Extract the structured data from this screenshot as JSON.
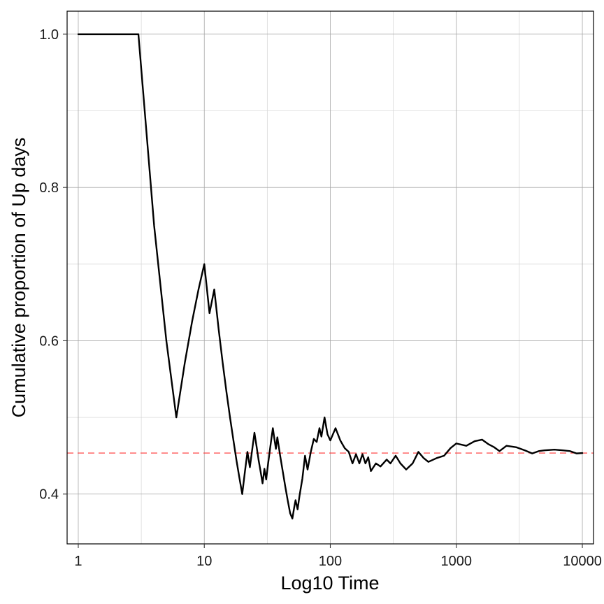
{
  "chart_data": {
    "type": "line",
    "title": "",
    "xlabel": "Log10 Time",
    "ylabel": "Cumulative proportion of Up days",
    "x_scale": "log10",
    "xlim": [
      0.8155,
      12263
    ],
    "ylim": [
      0.335,
      1.03
    ],
    "x_ticks": [
      1,
      10,
      100,
      1000,
      10000
    ],
    "x_tick_labels": [
      "1",
      "10",
      "100",
      "1000",
      "10000"
    ],
    "y_ticks": [
      0.4,
      0.6,
      0.8,
      1.0
    ],
    "y_tick_labels": [
      "0.4",
      "0.6",
      "0.8",
      "1.0"
    ],
    "grid": true,
    "reference_line": {
      "y": 0.4535,
      "color": "#ff3333",
      "style": "dashed"
    },
    "series": [
      {
        "color": "#000000",
        "points": [
          [
            1,
            1.0
          ],
          [
            2,
            1.0
          ],
          [
            3,
            1.0
          ],
          [
            4,
            0.75
          ],
          [
            5,
            0.6
          ],
          [
            6,
            0.5
          ],
          [
            7,
            0.571
          ],
          [
            8,
            0.625
          ],
          [
            9,
            0.667
          ],
          [
            10,
            0.7
          ],
          [
            11,
            0.636
          ],
          [
            12,
            0.667
          ],
          [
            13,
            0.615
          ],
          [
            14,
            0.571
          ],
          [
            15,
            0.533
          ],
          [
            16,
            0.5
          ],
          [
            17,
            0.471
          ],
          [
            18,
            0.444
          ],
          [
            19,
            0.421
          ],
          [
            20,
            0.4
          ],
          [
            21,
            0.429
          ],
          [
            22,
            0.455
          ],
          [
            23,
            0.435
          ],
          [
            24,
            0.458
          ],
          [
            25,
            0.48
          ],
          [
            26,
            0.462
          ],
          [
            27,
            0.444
          ],
          [
            28,
            0.429
          ],
          [
            29,
            0.414
          ],
          [
            30,
            0.433
          ],
          [
            31,
            0.419
          ],
          [
            32,
            0.438
          ],
          [
            33,
            0.455
          ],
          [
            34,
            0.471
          ],
          [
            35,
            0.486
          ],
          [
            36,
            0.472
          ],
          [
            37,
            0.459
          ],
          [
            38,
            0.474
          ],
          [
            39,
            0.462
          ],
          [
            40,
            0.45
          ],
          [
            42,
            0.429
          ],
          [
            44,
            0.409
          ],
          [
            46,
            0.391
          ],
          [
            48,
            0.375
          ],
          [
            50,
            0.368
          ],
          [
            52,
            0.385
          ],
          [
            53,
            0.392
          ],
          [
            55,
            0.38
          ],
          [
            57,
            0.398
          ],
          [
            60,
            0.42
          ],
          [
            63,
            0.45
          ],
          [
            66,
            0.432
          ],
          [
            70,
            0.455
          ],
          [
            74,
            0.472
          ],
          [
            78,
            0.468
          ],
          [
            82,
            0.486
          ],
          [
            85,
            0.475
          ],
          [
            90,
            0.5
          ],
          [
            95,
            0.478
          ],
          [
            100,
            0.47
          ],
          [
            110,
            0.486
          ],
          [
            120,
            0.47
          ],
          [
            130,
            0.46
          ],
          [
            140,
            0.455
          ],
          [
            150,
            0.44
          ],
          [
            160,
            0.452
          ],
          [
            170,
            0.44
          ],
          [
            180,
            0.452
          ],
          [
            190,
            0.44
          ],
          [
            200,
            0.448
          ],
          [
            210,
            0.43
          ],
          [
            230,
            0.44
          ],
          [
            250,
            0.436
          ],
          [
            280,
            0.445
          ],
          [
            300,
            0.44
          ],
          [
            330,
            0.45
          ],
          [
            360,
            0.44
          ],
          [
            400,
            0.432
          ],
          [
            450,
            0.44
          ],
          [
            500,
            0.455
          ],
          [
            550,
            0.447
          ],
          [
            600,
            0.442
          ],
          [
            700,
            0.447
          ],
          [
            800,
            0.45
          ],
          [
            900,
            0.46
          ],
          [
            1000,
            0.466
          ],
          [
            1200,
            0.463
          ],
          [
            1400,
            0.469
          ],
          [
            1600,
            0.471
          ],
          [
            1800,
            0.465
          ],
          [
            2000,
            0.461
          ],
          [
            2200,
            0.456
          ],
          [
            2500,
            0.463
          ],
          [
            3000,
            0.461
          ],
          [
            3500,
            0.457
          ],
          [
            4000,
            0.453
          ],
          [
            4500,
            0.456
          ],
          [
            5000,
            0.457
          ],
          [
            6000,
            0.458
          ],
          [
            7000,
            0.457
          ],
          [
            8000,
            0.456
          ],
          [
            9000,
            0.453
          ],
          [
            10000,
            0.4535
          ]
        ]
      }
    ]
  }
}
